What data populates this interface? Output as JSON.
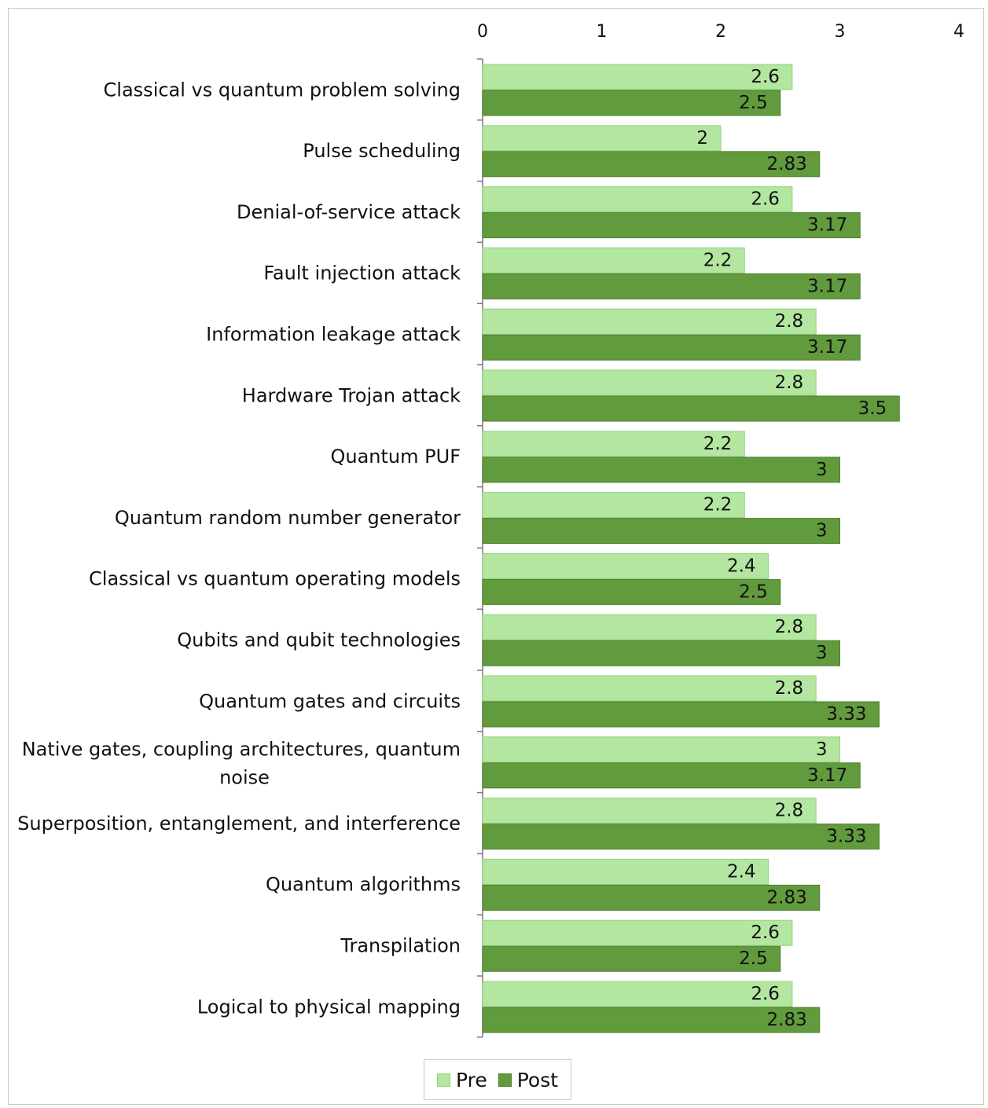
{
  "chart_data": {
    "type": "bar",
    "orientation": "horizontal",
    "categories": [
      "Classical vs quantum problem solving",
      "Pulse scheduling",
      "Denial-of-service attack",
      "Fault injection attack",
      "Information leakage attack",
      "Hardware Trojan attack",
      "Quantum PUF",
      "Quantum random number generator",
      "Classical vs quantum operating models",
      "Qubits and qubit technologies",
      "Quantum gates and circuits",
      "Native gates, coupling architectures, quantum noise",
      "Superposition, entanglement, and interference",
      "Quantum algorithms",
      "Transpilation",
      "Logical to physical mapping"
    ],
    "series": [
      {
        "name": "Pre",
        "color": "#b3e6a1",
        "border": "#92d47a",
        "values": [
          2.6,
          2,
          2.6,
          2.2,
          2.8,
          2.8,
          2.2,
          2.2,
          2.4,
          2.8,
          2.8,
          3,
          2.8,
          2.4,
          2.6,
          2.6
        ],
        "labels": [
          "2.6",
          "2",
          "2.6",
          "2.2",
          "2.8",
          "2.8",
          "2.2",
          "2.2",
          "2.4",
          "2.8",
          "2.8",
          "3",
          "2.8",
          "2.4",
          "2.6",
          "2.6"
        ]
      },
      {
        "name": "Post",
        "color": "#629a3e",
        "border": "#4f7f30",
        "values": [
          2.5,
          2.83,
          3.17,
          3.17,
          3.17,
          3.5,
          3,
          3,
          2.5,
          3,
          3.33,
          3.17,
          3.33,
          2.83,
          2.5,
          2.83
        ],
        "labels": [
          "2.5",
          "2.83",
          "3.17",
          "3.17",
          "3.17",
          "3.5",
          "3",
          "3",
          "2.5",
          "3",
          "3.33",
          "3.17",
          "3.33",
          "2.83",
          "2.5",
          "2.83"
        ]
      }
    ],
    "xlim": [
      0,
      4
    ],
    "xticks": [
      "0",
      "1",
      "2",
      "3",
      "4"
    ],
    "x_axis_position": "top",
    "grid": false,
    "legend_position": "bottom",
    "title": "",
    "xlabel": "",
    "ylabel": ""
  }
}
